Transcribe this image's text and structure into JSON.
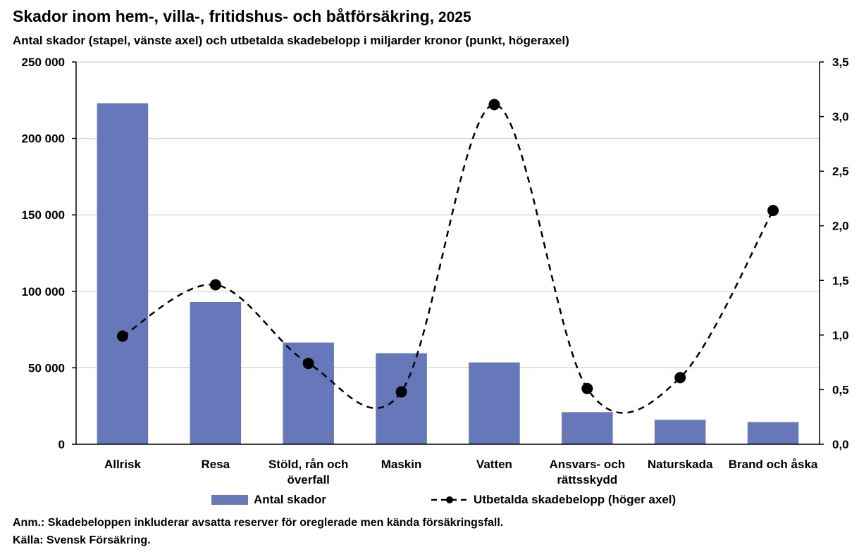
{
  "header": {
    "title_main": "Skador inom hem-, villa-, fritidshus- och båtförsäkring,",
    "title_year": " 2025",
    "subtitle": "Antal skador (stapel, vänste axel) och utbetalda skadebelopp i miljarder kronor (punkt, högeraxel)"
  },
  "footer": {
    "note": "Anm.: Skadebeloppen inkluderar avsatta reserver för oreglerade men kända försäkringsfall.",
    "source": "Källa: Svensk Försäkring."
  },
  "chart_data": {
    "type": "bar",
    "categories": [
      [
        "Allrisk"
      ],
      [
        "Resa"
      ],
      [
        "Stöld, rån och",
        "överfall"
      ],
      [
        "Maskin"
      ],
      [
        "Vatten"
      ],
      [
        "Ansvars- och",
        "rättsskydd"
      ],
      [
        "Naturskada"
      ],
      [
        "Brand och åska"
      ]
    ],
    "series": [
      {
        "name": "Antal skador",
        "type": "bar",
        "axis": "left",
        "color": "#6678ba",
        "values": [
          223000,
          93000,
          66500,
          59500,
          53500,
          21000,
          16000,
          14500
        ]
      },
      {
        "name": "Utbetalda skadebelopp (höger axel)",
        "type": "line",
        "axis": "right",
        "color": "#000000",
        "line_style": "dashed-smooth",
        "marker": "circle",
        "values": [
          0.99,
          1.46,
          0.74,
          0.48,
          3.11,
          0.51,
          0.61,
          2.14
        ]
      }
    ],
    "y_left": {
      "min": 0,
      "max": 250000,
      "ticks": [
        0,
        50000,
        100000,
        150000,
        200000,
        250000
      ],
      "tick_labels": [
        "0",
        "50 000",
        "100 000",
        "150 000",
        "200 000",
        "250 000"
      ]
    },
    "y_right": {
      "min": 0,
      "max": 3.5,
      "ticks": [
        0,
        0.5,
        1,
        1.5,
        2,
        2.5,
        3,
        3.5
      ],
      "tick_labels": [
        "0,0",
        "0,5",
        "1,0",
        "1,5",
        "2,0",
        "2,5",
        "3,0",
        "3,5"
      ]
    },
    "grid": "horizontal",
    "legend_position": "bottom"
  }
}
